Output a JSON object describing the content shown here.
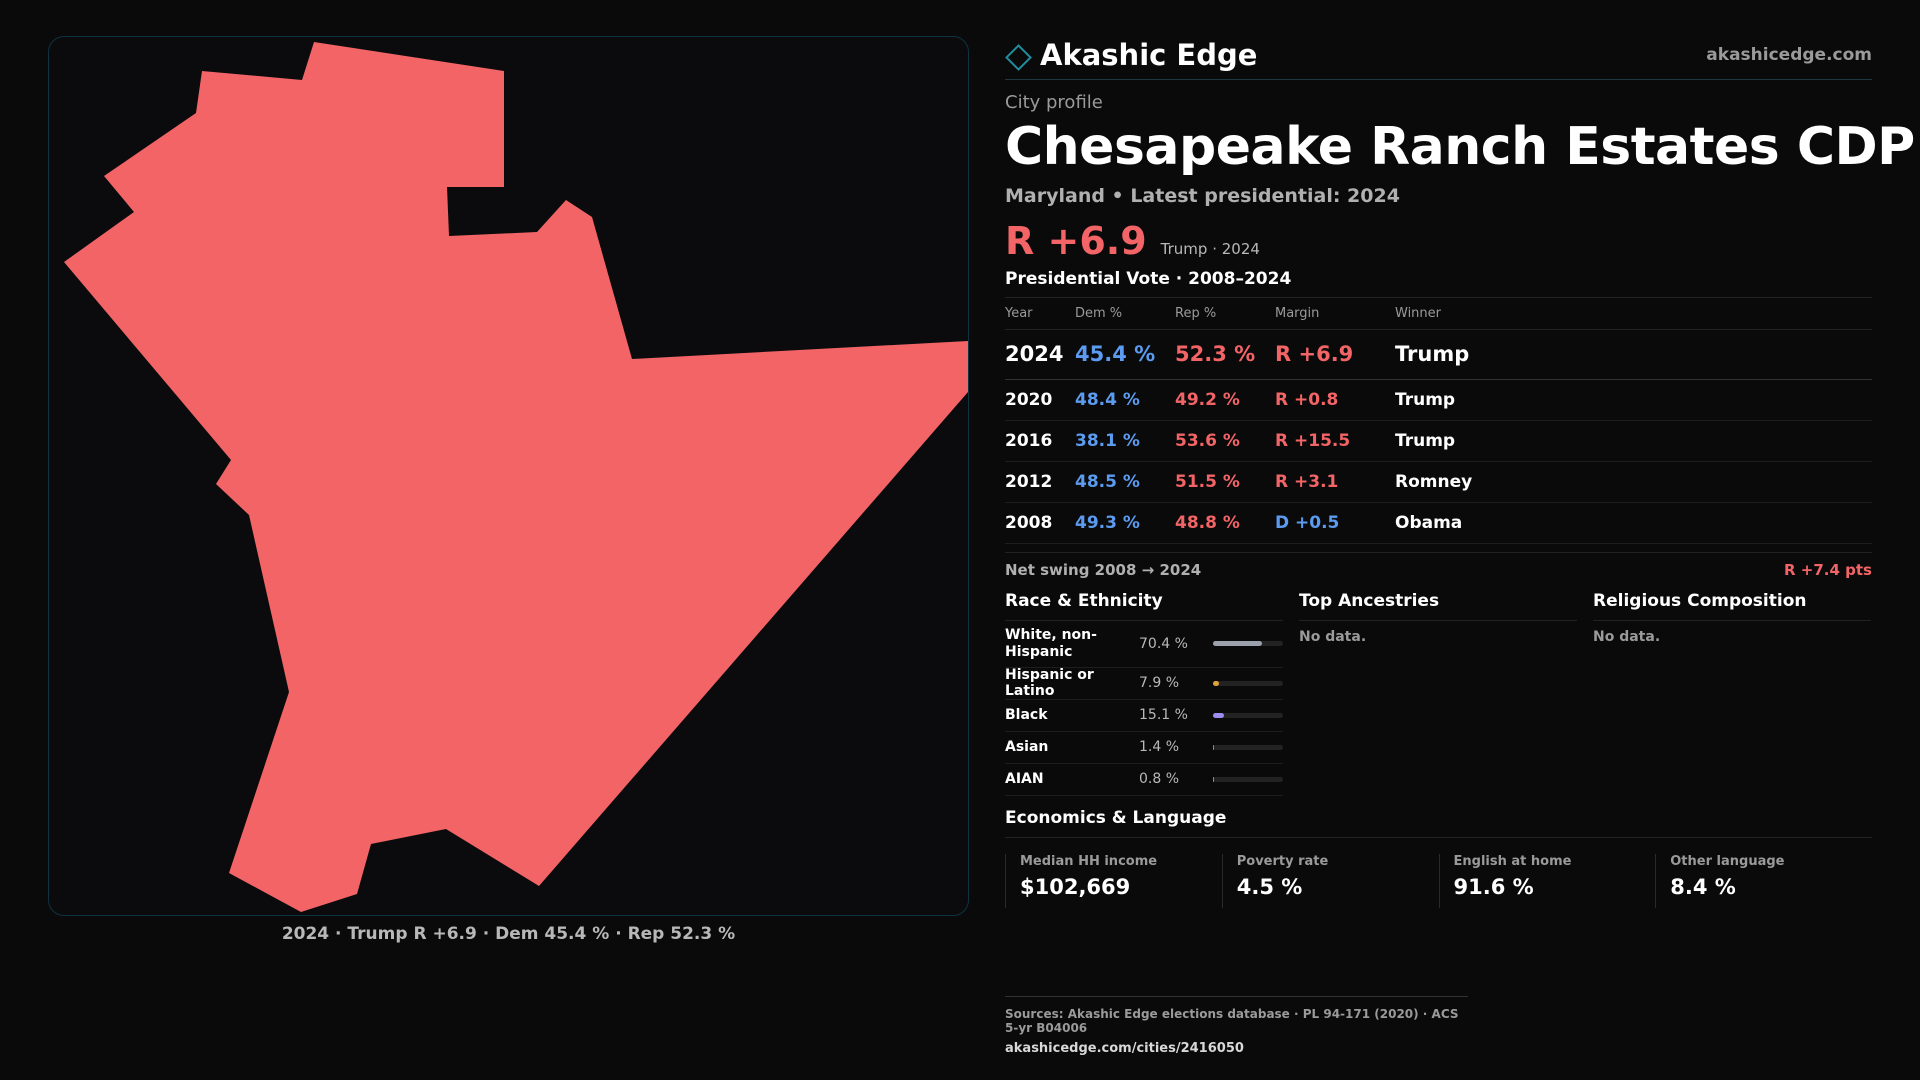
{
  "map": {
    "caption": "2024 · Trump R +6.9 · Dem 45.4 % · Rep 52.3 %",
    "fill_color": "#f26466"
  },
  "header": {
    "brand": "Akashic Edge",
    "site": "akashicedge.com"
  },
  "profile": {
    "kicker": "City profile",
    "title": "Chesapeake Ranch Estates CDP",
    "subtitle": "Maryland • Latest presidential: 2024",
    "margin": "R +6.9",
    "margin_sub": "Trump · 2024"
  },
  "votes": {
    "title": "Presidential Vote · 2008–2024",
    "headers": {
      "year": "Year",
      "dem": "Dem %",
      "rep": "Rep %",
      "margin": "Margin",
      "winner": "Winner"
    },
    "rows": [
      {
        "year": "2024",
        "dem": "45.4 %",
        "rep": "52.3 %",
        "margin": "R +6.9",
        "winner": "Trump"
      },
      {
        "year": "2020",
        "dem": "48.4 %",
        "rep": "49.2 %",
        "margin": "R +0.8",
        "winner": "Trump"
      },
      {
        "year": "2016",
        "dem": "38.1 %",
        "rep": "53.6 %",
        "margin": "R +15.5",
        "winner": "Trump"
      },
      {
        "year": "2012",
        "dem": "48.5 %",
        "rep": "51.5 %",
        "margin": "R +3.1",
        "winner": "Romney"
      },
      {
        "year": "2008",
        "dem": "49.3 %",
        "rep": "48.8 %",
        "margin": "D +0.5",
        "winner": "Obama"
      }
    ],
    "swing_label": "Net swing 2008 → 2024",
    "swing_value": "R +7.4 pts"
  },
  "race": {
    "title": "Race & Ethnicity",
    "rows": [
      {
        "label": "White, non-Hispanic",
        "pct": "70.4 %",
        "share": 0.704,
        "color": "#9aa1ad"
      },
      {
        "label": "Hispanic or Latino",
        "pct": "7.9 %",
        "share": 0.079,
        "color": "#e0a23a"
      },
      {
        "label": "Black",
        "pct": "15.1 %",
        "share": 0.151,
        "color": "#9b8cf0"
      },
      {
        "label": "Asian",
        "pct": "1.4 %",
        "share": 0.014,
        "color": "#35b58a"
      },
      {
        "label": "AIAN",
        "pct": "0.8 %",
        "share": 0.008,
        "color": "#d97a3a"
      }
    ]
  },
  "ancestry": {
    "title": "Top Ancestries",
    "empty": "No data."
  },
  "religion": {
    "title": "Religious Composition",
    "empty": "No data."
  },
  "economics": {
    "title": "Economics & Language",
    "cells": [
      {
        "label": "Median HH income",
        "value": "$102,669"
      },
      {
        "label": "Poverty rate",
        "value": "4.5 %"
      },
      {
        "label": "English at home",
        "value": "91.6 %"
      },
      {
        "label": "Other language",
        "value": "8.4 %"
      }
    ]
  },
  "footer": {
    "sources": "Sources: Akashic Edge elections database · PL 94-171 (2020) · ACS 5-yr B04006",
    "url": "akashicedge.com/cities/2416050"
  }
}
